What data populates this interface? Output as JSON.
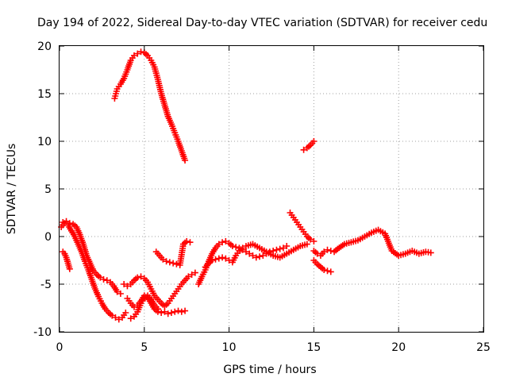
{
  "chart_data": {
    "type": "scatter",
    "title": "Day 194 of 2022, Sidereal Day-to-day VTEC variation (SDTVAR) for receiver cedu",
    "xlabel": "GPS time / hours",
    "ylabel": "SDTVAR / TECUs",
    "xlim": [
      0,
      25
    ],
    "ylim": [
      -10,
      20
    ],
    "xticks": [
      0,
      5,
      10,
      15,
      20,
      25
    ],
    "yticks": [
      -10,
      -5,
      0,
      5,
      10,
      15,
      20
    ],
    "xtick_labels": [
      "0",
      "5",
      "10",
      "15",
      "20",
      "25"
    ],
    "ytick_labels": [
      "-10",
      "-5",
      "0",
      "5",
      "10",
      "15",
      "20"
    ],
    "grid": true,
    "marker": "+",
    "color": "#ff0000",
    "series": [
      {
        "name": "early-high-arc",
        "x": [
          3.25,
          3.4,
          3.6,
          3.8,
          4.0,
          4.2,
          4.4,
          4.6,
          4.8,
          5.0,
          5.2,
          5.4,
          5.6,
          5.8,
          6.0,
          6.2,
          6.4,
          6.6,
          6.8,
          7.0,
          7.2,
          7.4
        ],
        "y": [
          14.5,
          15.5,
          16.0,
          16.6,
          17.5,
          18.5,
          19.0,
          19.2,
          19.4,
          19.3,
          19.0,
          18.5,
          17.8,
          16.5,
          15.0,
          13.8,
          12.6,
          11.8,
          10.9,
          10.0,
          9.0,
          8.0
        ]
      },
      {
        "name": "mid-short-segment",
        "x": [
          14.4,
          14.6,
          14.8,
          15.0
        ],
        "y": [
          9.1,
          9.3,
          9.6,
          10.0
        ]
      },
      {
        "name": "early-dip",
        "x": [
          0.1,
          0.3,
          0.5,
          0.7,
          0.9,
          1.1,
          1.3,
          1.5,
          1.7,
          1.9,
          2.1,
          2.3,
          2.5,
          2.7,
          2.9,
          3.1,
          3.3,
          3.5,
          3.7,
          3.9
        ],
        "y": [
          1.0,
          1.4,
          1.2,
          0.6,
          0.0,
          -0.8,
          -1.6,
          -2.6,
          -3.5,
          -4.5,
          -5.5,
          -6.3,
          -7.0,
          -7.6,
          -8.0,
          -8.3,
          -8.5,
          -8.7,
          -8.5,
          -8.0
        ]
      },
      {
        "name": "early-upper-band",
        "x": [
          0.2,
          0.4,
          0.6,
          0.8,
          1.0,
          1.2,
          1.4,
          1.6,
          1.8,
          2.0,
          2.2,
          2.4,
          2.6,
          2.8,
          3.0,
          3.2,
          3.4,
          3.6
        ],
        "y": [
          1.5,
          1.6,
          1.4,
          1.3,
          1.0,
          0.2,
          -0.8,
          -2.0,
          -2.8,
          -3.6,
          -4.0,
          -4.3,
          -4.5,
          -4.6,
          -4.8,
          -5.2,
          -5.8,
          -6.0
        ]
      },
      {
        "name": "early-side-segment",
        "x": [
          0.2,
          0.3,
          0.4,
          0.5,
          0.6
        ],
        "y": [
          -1.6,
          -1.8,
          -2.2,
          -2.8,
          -3.4
        ]
      },
      {
        "name": "mid-cluster-a",
        "x": [
          3.8,
          4.0,
          4.2,
          4.4,
          4.6,
          4.8,
          5.0,
          5.2,
          5.4,
          5.6,
          5.8,
          6.0,
          6.2,
          6.4,
          6.6,
          6.8,
          7.0,
          7.2,
          7.4,
          7.6,
          7.8,
          8.0
        ],
        "y": [
          -5.0,
          -5.2,
          -5.0,
          -4.6,
          -4.3,
          -4.2,
          -4.4,
          -4.8,
          -5.5,
          -6.2,
          -6.6,
          -7.0,
          -7.3,
          -7.0,
          -6.5,
          -6.0,
          -5.5,
          -5.0,
          -4.6,
          -4.2,
          -4.0,
          -3.8
        ]
      },
      {
        "name": "mid-cluster-b",
        "x": [
          4.0,
          4.2,
          4.4,
          4.6,
          4.8,
          5.0,
          5.2,
          5.4,
          5.6,
          5.8,
          6.0,
          6.2,
          6.4,
          6.6,
          6.8,
          7.0,
          7.2,
          7.4
        ],
        "y": [
          -6.5,
          -7.0,
          -7.4,
          -7.2,
          -6.8,
          -6.2,
          -6.4,
          -7.0,
          -7.6,
          -7.9,
          -8.0,
          -7.9,
          -8.1,
          -8.0,
          -7.9,
          -7.8,
          -7.9,
          -7.8
        ]
      },
      {
        "name": "mid-cluster-c",
        "x": [
          4.2,
          4.4,
          4.6,
          4.8,
          5.0,
          5.2,
          5.4,
          5.6,
          5.8
        ],
        "y": [
          -8.6,
          -8.4,
          -7.9,
          -7.0,
          -6.5,
          -6.2,
          -6.6,
          -7.2,
          -7.6
        ]
      },
      {
        "name": "mid-short-pieces",
        "x": [
          5.7,
          5.9,
          6.1,
          6.3,
          6.5,
          6.7,
          6.9,
          7.1,
          7.3,
          7.5,
          7.7
        ],
        "y": [
          -1.6,
          -2.0,
          -2.4,
          -2.6,
          -2.7,
          -2.8,
          -2.9,
          -3.0,
          -0.8,
          -0.5,
          -0.6
        ]
      },
      {
        "name": "late-ramp",
        "x": [
          8.2,
          8.4,
          8.6,
          8.8,
          9.0,
          9.2,
          9.4,
          9.6,
          9.8,
          10.0,
          10.2,
          10.4,
          10.6,
          10.8,
          11.0,
          11.2,
          11.4,
          11.6,
          11.8,
          12.0,
          12.2,
          12.4,
          12.6,
          12.8,
          13.0,
          13.2,
          13.4
        ],
        "y": [
          -5.0,
          -4.2,
          -3.5,
          -2.6,
          -1.8,
          -1.2,
          -0.8,
          -0.6,
          -0.5,
          -0.7,
          -1.0,
          -1.1,
          -1.2,
          -1.4,
          -1.6,
          -1.8,
          -2.0,
          -2.2,
          -2.1,
          -2.0,
          -1.8,
          -1.6,
          -1.5,
          -1.4,
          -1.3,
          -1.2,
          -1.0
        ]
      },
      {
        "name": "late-lower-band",
        "x": [
          8.6,
          8.8,
          9.0,
          9.2,
          9.4,
          9.6,
          9.8,
          10.0,
          10.2,
          10.4,
          10.6,
          10.8,
          11.0,
          11.4,
          11.8,
          12.2,
          12.6,
          13.0,
          13.4,
          13.8,
          14.2,
          14.6
        ],
        "y": [
          -3.2,
          -2.8,
          -2.5,
          -2.4,
          -2.3,
          -2.2,
          -2.3,
          -2.5,
          -2.7,
          -2.0,
          -1.5,
          -1.2,
          -1.0,
          -0.8,
          -1.2,
          -1.6,
          -2.0,
          -2.2,
          -1.8,
          -1.4,
          -1.0,
          -0.8
        ]
      },
      {
        "name": "late-peak",
        "x": [
          13.6,
          13.8,
          14.0,
          14.2,
          14.4,
          14.6,
          14.8,
          15.0
        ],
        "y": [
          2.5,
          2.0,
          1.5,
          1.0,
          0.5,
          0.0,
          -0.3,
          -0.5
        ]
      },
      {
        "name": "late-tail",
        "x": [
          15.0,
          15.2,
          15.4,
          15.6,
          15.8,
          16.0,
          16.2,
          16.4,
          16.8,
          17.2,
          17.6,
          18.0,
          18.4,
          18.8,
          19.2,
          19.6,
          20.0,
          20.4,
          20.8,
          21.2,
          21.6,
          21.9
        ],
        "y": [
          -1.5,
          -1.8,
          -2.0,
          -1.6,
          -1.4,
          -1.5,
          -1.6,
          -1.3,
          -0.8,
          -0.6,
          -0.4,
          0.0,
          0.4,
          0.7,
          0.3,
          -1.5,
          -2.0,
          -1.8,
          -1.5,
          -1.8,
          -1.6,
          -1.7
        ]
      },
      {
        "name": "late-drop",
        "x": [
          15.0,
          15.2,
          15.4,
          15.6,
          15.8,
          16.0
        ],
        "y": [
          -2.5,
          -2.9,
          -3.2,
          -3.5,
          -3.6,
          -3.7
        ]
      }
    ]
  }
}
